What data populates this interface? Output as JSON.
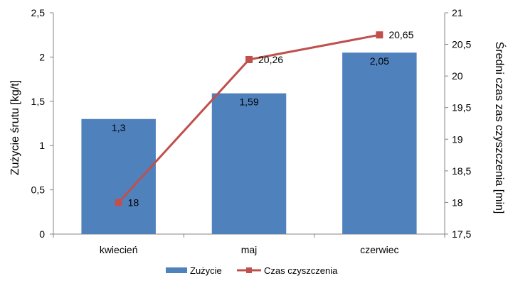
{
  "chart_data": {
    "type": "bar",
    "categories": [
      "kwiecień",
      "maj",
      "czerwiec"
    ],
    "series": [
      {
        "name": "Zużycie",
        "kind": "bar",
        "axis": "left",
        "values": [
          1.3,
          1.59,
          2.05
        ],
        "labels": [
          "1,3",
          "1,59",
          "2,05"
        ],
        "color": "#4F81BD"
      },
      {
        "name": "Czas czyszczenia",
        "kind": "line",
        "axis": "right",
        "values": [
          18,
          20.26,
          20.65
        ],
        "labels": [
          "18",
          "20,26",
          "20,65"
        ],
        "color": "#C0504D"
      }
    ],
    "ylabel": "Zużycie śrutu [kg/t]",
    "y2label": "Średni czas zas czyszczenia [min]",
    "ylim": [
      0,
      2.5
    ],
    "y2lim": [
      17.5,
      21
    ],
    "yticks": [
      "0",
      "0,5",
      "1",
      "1,5",
      "2",
      "2,5"
    ],
    "y2ticks": [
      "17,5",
      "18",
      "18,5",
      "19",
      "19,5",
      "20",
      "20,5",
      "21"
    ],
    "grid": false,
    "legend": "bottom"
  }
}
